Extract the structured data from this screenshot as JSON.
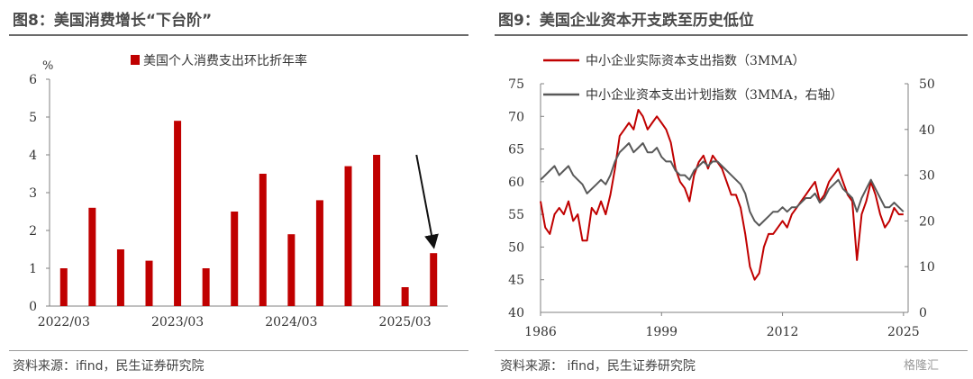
{
  "colors": {
    "red": "#c00000",
    "gray": "#595959",
    "axis": "#808080"
  },
  "left": {
    "title": "图8：美国消费增长“下台阶”",
    "source": "资料来源：ifind，民生证券研究院",
    "unit": "%"
  },
  "right": {
    "title": "图9：美国企业资本开支跌至历史低位",
    "source": "资料来源：  ifind，民生证券研究院"
  },
  "watermark": "格隆汇",
  "chart_data": [
    {
      "type": "bar",
      "title": "",
      "xlabel": "",
      "ylabel": "%",
      "ylim": [
        0,
        6
      ],
      "yticks": [
        0,
        1,
        2,
        3,
        4,
        5,
        6
      ],
      "x_tick_labels": [
        "2022/03",
        "2023/03",
        "2024/03",
        "2025/03"
      ],
      "x_tick_index": [
        0,
        4,
        8,
        12
      ],
      "categories": [
        "2022Q1",
        "2022Q2",
        "2022Q3",
        "2022Q4",
        "2023Q1",
        "2023Q2",
        "2023Q3",
        "2023Q4",
        "2024Q1",
        "2024Q2",
        "2024Q3",
        "2024Q4",
        "2025Q1",
        "2025Q2"
      ],
      "series": [
        {
          "name": "美国个人消费支出环比折年率",
          "values": [
            1.0,
            2.6,
            1.5,
            1.2,
            4.9,
            1.0,
            2.5,
            3.5,
            1.9,
            2.8,
            3.7,
            4.0,
            0.5,
            1.4
          ]
        }
      ],
      "legend": "top-center",
      "annotation": "arrow pointing down toward 2025Q2"
    },
    {
      "type": "line",
      "title": "",
      "xlim": [
        1986,
        2025.5
      ],
      "x_ticks": [
        1986,
        1999,
        2012,
        2025
      ],
      "ylim_left": [
        40,
        75
      ],
      "yticks_left": [
        40,
        45,
        50,
        55,
        60,
        65,
        70,
        75
      ],
      "ylim_right": [
        0,
        50
      ],
      "yticks_right": [
        0,
        10,
        20,
        30,
        40,
        50
      ],
      "legend": "top-left",
      "series": [
        {
          "name": "中小企业实际资本支出指数（3MMA）",
          "axis": "left",
          "x": [
            1986,
            1986.5,
            1987,
            1987.5,
            1988,
            1988.5,
            1989,
            1989.5,
            1990,
            1990.5,
            1991,
            1991.5,
            1992,
            1992.5,
            1993,
            1993.5,
            1994,
            1994.5,
            1995,
            1995.5,
            1996,
            1996.5,
            1997,
            1997.5,
            1998,
            1998.5,
            1999,
            1999.5,
            2000,
            2000.5,
            2001,
            2001.5,
            2002,
            2002.5,
            2003,
            2003.5,
            2004,
            2004.5,
            2005,
            2005.5,
            2006,
            2006.5,
            2007,
            2007.5,
            2008,
            2008.5,
            2009,
            2009.5,
            2010,
            2010.5,
            2011,
            2011.5,
            2012,
            2012.5,
            2013,
            2013.5,
            2014,
            2014.5,
            2015,
            2015.5,
            2016,
            2016.5,
            2017,
            2017.5,
            2018,
            2018.5,
            2019,
            2019.5,
            2020,
            2020.5,
            2021,
            2021.5,
            2022,
            2022.5,
            2023,
            2023.5,
            2024,
            2024.5,
            2025
          ],
          "y": [
            57,
            53,
            52,
            55,
            56,
            55,
            57,
            54,
            55,
            51,
            51,
            56,
            55,
            57,
            55,
            58,
            62,
            67,
            68,
            69,
            68,
            71,
            70,
            68,
            69,
            70,
            69,
            68,
            66,
            62,
            60,
            59,
            57,
            61,
            63,
            64,
            62,
            64,
            63,
            62,
            60,
            58,
            58,
            56,
            52,
            47,
            45,
            46,
            50,
            52,
            52,
            53,
            54,
            53,
            55,
            56,
            57,
            58,
            59,
            60,
            57,
            58,
            60,
            61,
            62,
            60,
            58,
            57,
            48,
            55,
            57,
            60,
            58,
            55,
            53,
            54,
            56,
            55,
            55
          ]
        },
        {
          "name": "中小企业资本支出计划指数（3MMA，右轴）",
          "axis": "right",
          "x": [
            1986,
            1986.5,
            1987,
            1987.5,
            1988,
            1988.5,
            1989,
            1989.5,
            1990,
            1990.5,
            1991,
            1991.5,
            1992,
            1992.5,
            1993,
            1993.5,
            1994,
            1994.5,
            1995,
            1995.5,
            1996,
            1996.5,
            1997,
            1997.5,
            1998,
            1998.5,
            1999,
            1999.5,
            2000,
            2000.5,
            2001,
            2001.5,
            2002,
            2002.5,
            2003,
            2003.5,
            2004,
            2004.5,
            2005,
            2005.5,
            2006,
            2006.5,
            2007,
            2007.5,
            2008,
            2008.5,
            2009,
            2009.5,
            2010,
            2010.5,
            2011,
            2011.5,
            2012,
            2012.5,
            2013,
            2013.5,
            2014,
            2014.5,
            2015,
            2015.5,
            2016,
            2016.5,
            2017,
            2017.5,
            2018,
            2018.5,
            2019,
            2019.5,
            2020,
            2020.5,
            2021,
            2021.5,
            2022,
            2022.5,
            2023,
            2023.5,
            2024,
            2024.5,
            2025
          ],
          "y": [
            29,
            30,
            31,
            32,
            30,
            31,
            32,
            30,
            29,
            28,
            26,
            27,
            28,
            29,
            28,
            30,
            33,
            35,
            36,
            37,
            35,
            36,
            37,
            35,
            35,
            36,
            34,
            33,
            33,
            31,
            30,
            30,
            29,
            31,
            32,
            33,
            32,
            33,
            33,
            32,
            31,
            30,
            29,
            28,
            26,
            22,
            20,
            19,
            20,
            21,
            22,
            22,
            23,
            22,
            23,
            23,
            24,
            25,
            25,
            26,
            24,
            25,
            27,
            28,
            29,
            27,
            26,
            25,
            22,
            25,
            27,
            29,
            27,
            25,
            23,
            23,
            24,
            23,
            22
          ]
        }
      ]
    }
  ]
}
